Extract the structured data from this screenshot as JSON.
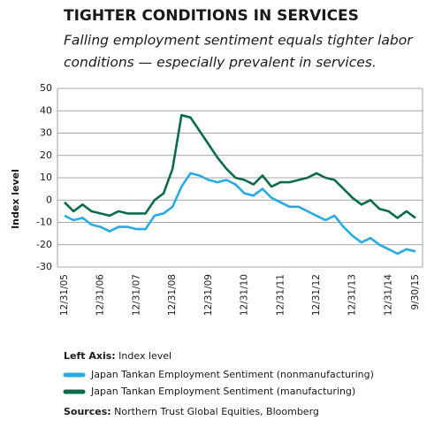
{
  "chart_data": {
    "type": "line",
    "title": "TIGHTER CONDITIONS IN SERVICES",
    "subtitle": [
      "Falling employment sentiment equals tighter labor",
      "conditions — especially prevalent in services."
    ],
    "y_label": "Index level",
    "categories": [
      "12/31/05",
      null,
      null,
      null,
      "12/31/06",
      null,
      null,
      null,
      "12/31/07",
      null,
      null,
      null,
      "12/31/08",
      null,
      null,
      null,
      "12/31/09",
      null,
      null,
      null,
      "12/31/10",
      null,
      null,
      null,
      "12/31/11",
      null,
      null,
      null,
      "12/31/12",
      null,
      null,
      null,
      "12/31/13",
      null,
      null,
      null,
      "12/31/14",
      null,
      null,
      "9/30/15"
    ],
    "series": [
      {
        "name": "Japan Tankan Employment Sentiment (nonmanufacturing)",
        "color": "#29abe2",
        "values": [
          -7,
          -9,
          -8,
          -11,
          -12,
          -14,
          -12,
          -12,
          -13,
          -13,
          -7,
          -6,
          -3,
          6,
          12,
          11,
          9,
          8,
          9,
          7,
          3,
          2,
          5,
          1,
          -1,
          -3,
          -3,
          -5,
          -7,
          -9,
          -7,
          -12,
          -16,
          -19,
          -17,
          -20,
          -22,
          -24,
          -22,
          -23
        ]
      },
      {
        "name": "Japan Tankan Employment Sentiment (manufacturing)",
        "color": "#0b6b4b",
        "values": [
          -1,
          -5,
          -2,
          -5,
          -6,
          -7,
          -5,
          -6,
          -6,
          -6,
          0,
          3,
          14,
          38,
          37,
          31,
          25,
          19,
          14,
          10,
          9,
          7,
          11,
          6,
          8,
          8,
          9,
          10,
          12,
          10,
          9,
          5,
          1,
          -2,
          0,
          -4,
          -5,
          -8,
          -5,
          -8
        ]
      }
    ],
    "ylim": [
      -30,
      50
    ],
    "yticks": [
      -30,
      -20,
      -10,
      0,
      10,
      20,
      30,
      40,
      50
    ],
    "grid": true,
    "notes": {
      "label": "Left Axis:",
      "text": "Index level"
    },
    "sources": {
      "label": "Sources:",
      "text": "Northern Trust Global Equities, Bloomberg"
    }
  }
}
